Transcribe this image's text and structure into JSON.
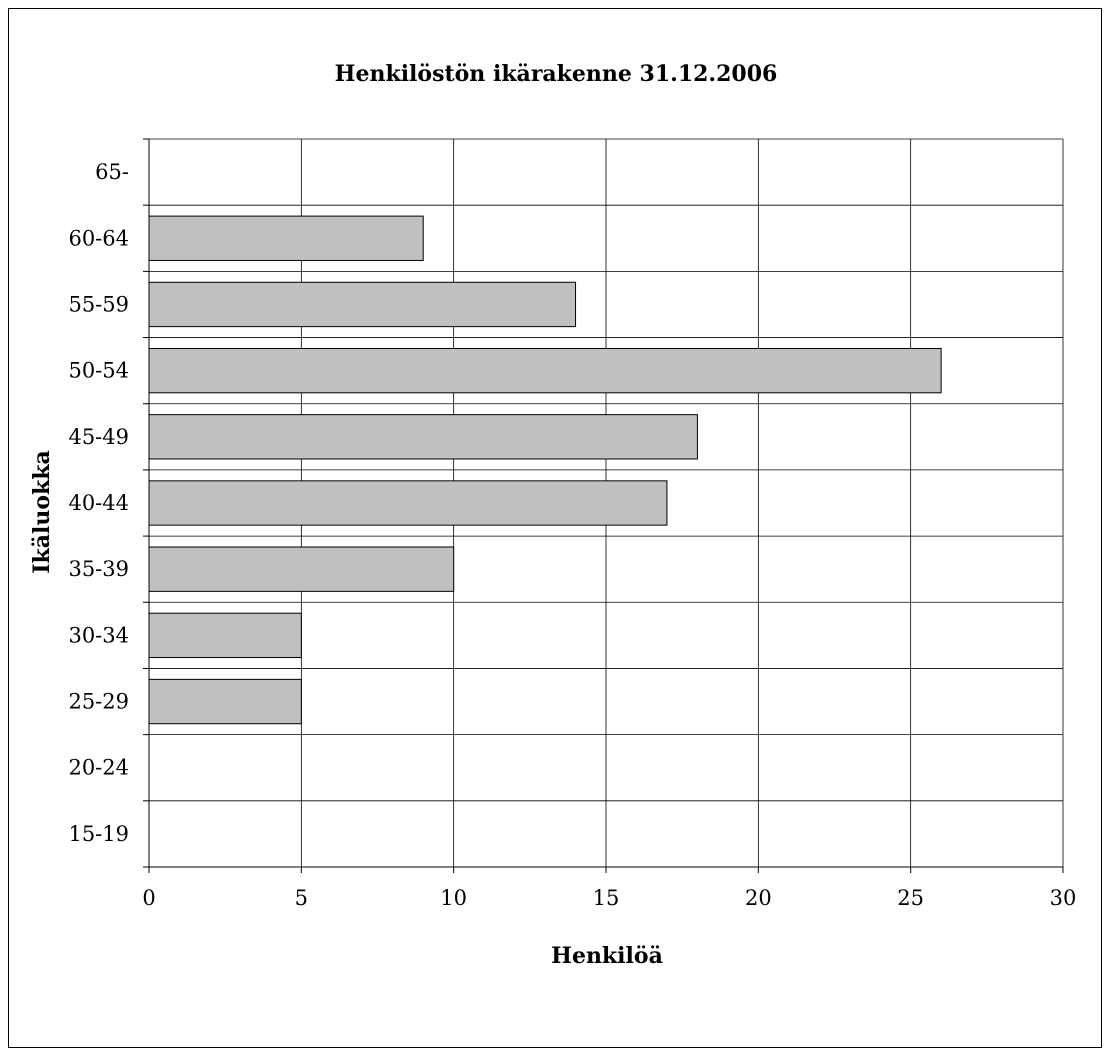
{
  "chart_data": {
    "type": "bar",
    "orientation": "horizontal",
    "title": "Henkilöstön ikärakenne 31.12.2006",
    "xlabel": "Henkilöä",
    "ylabel": "Ikäluokka",
    "categories": [
      "15-19",
      "20-24",
      "25-29",
      "30-34",
      "35-39",
      "40-44",
      "45-49",
      "50-54",
      "55-59",
      "60-64",
      "65-"
    ],
    "values": [
      0,
      0,
      5,
      5,
      10,
      17,
      18,
      26,
      14,
      9,
      0
    ],
    "xlim": [
      0,
      30
    ],
    "x_ticks": [
      "0",
      "5",
      "10",
      "15",
      "20",
      "25",
      "30"
    ],
    "grid": true,
    "legend": "none",
    "colors": {
      "bar_fill": "#c0c0c0",
      "bar_stroke": "#000000",
      "grid": "#000000"
    }
  }
}
